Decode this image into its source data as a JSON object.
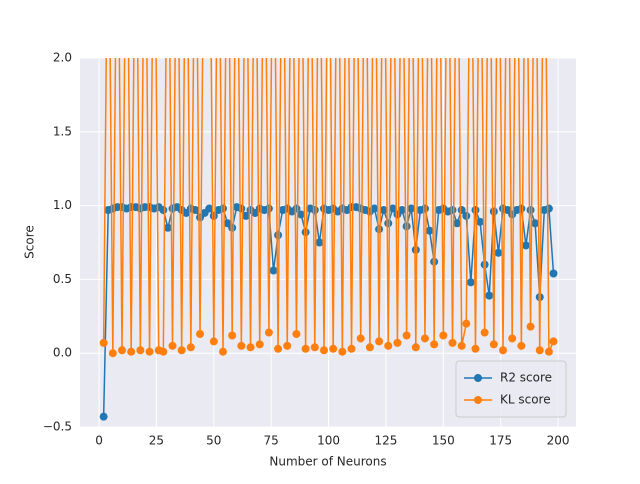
{
  "chart_data": {
    "type": "line",
    "xlabel": "Number of Neurons",
    "ylabel": "Score",
    "x": [
      2,
      4,
      6,
      8,
      10,
      12,
      14,
      16,
      18,
      20,
      22,
      24,
      26,
      28,
      30,
      32,
      34,
      36,
      38,
      40,
      42,
      44,
      46,
      48,
      50,
      52,
      54,
      56,
      58,
      60,
      62,
      64,
      66,
      68,
      70,
      72,
      74,
      76,
      78,
      80,
      82,
      84,
      86,
      88,
      90,
      92,
      94,
      96,
      98,
      100,
      102,
      104,
      106,
      108,
      110,
      112,
      114,
      116,
      118,
      120,
      122,
      124,
      126,
      128,
      130,
      132,
      134,
      136,
      138,
      140,
      142,
      144,
      146,
      148,
      150,
      152,
      154,
      156,
      158,
      160,
      162,
      164,
      166,
      168,
      170,
      172,
      174,
      176,
      178,
      180,
      182,
      184,
      186,
      188,
      190,
      192,
      194,
      196,
      198
    ],
    "series": [
      {
        "name": "R2 score",
        "color": "#1f77b4",
        "values": [
          -0.43,
          0.97,
          0.98,
          0.99,
          0.99,
          0.98,
          0.99,
          0.99,
          0.98,
          0.99,
          0.99,
          0.98,
          0.99,
          0.97,
          0.85,
          0.98,
          0.99,
          0.97,
          0.95,
          0.98,
          0.97,
          0.92,
          0.95,
          0.98,
          0.93,
          0.97,
          0.98,
          0.88,
          0.85,
          0.99,
          0.98,
          0.93,
          0.97,
          0.95,
          0.98,
          0.97,
          0.98,
          0.56,
          0.8,
          0.97,
          0.98,
          0.96,
          0.98,
          0.94,
          0.82,
          0.98,
          0.97,
          0.75,
          0.98,
          0.97,
          0.98,
          0.96,
          0.98,
          0.97,
          0.99,
          0.99,
          0.98,
          0.97,
          0.96,
          0.98,
          0.84,
          0.97,
          0.88,
          0.98,
          0.94,
          0.97,
          0.86,
          0.98,
          0.7,
          0.97,
          0.98,
          0.83,
          0.62,
          0.97,
          0.98,
          0.96,
          0.97,
          0.88,
          0.97,
          0.93,
          0.48,
          0.97,
          0.89,
          0.6,
          0.39,
          0.96,
          0.68,
          0.98,
          0.97,
          0.94,
          0.97,
          0.98,
          0.73,
          0.97,
          0.88,
          0.38,
          0.97,
          0.98,
          0.54
        ]
      },
      {
        "name": "KL score",
        "color": "#ff7f0e",
        "values": [
          0.07,
          3.5,
          0.0,
          3.5,
          0.02,
          3.5,
          0.01,
          3.5,
          0.02,
          3.5,
          0.01,
          3.5,
          0.02,
          0.01,
          3.5,
          0.05,
          3.5,
          0.02,
          3.5,
          0.04,
          3.5,
          0.13,
          3.5,
          3.5,
          0.08,
          3.5,
          0.01,
          3.5,
          0.12,
          3.5,
          0.05,
          3.5,
          0.04,
          3.5,
          0.06,
          3.5,
          0.14,
          3.5,
          0.03,
          3.5,
          0.05,
          3.5,
          0.13,
          3.5,
          0.03,
          3.5,
          0.04,
          3.5,
          0.02,
          3.5,
          0.03,
          3.5,
          0.01,
          3.5,
          0.03,
          3.5,
          0.1,
          3.5,
          0.04,
          3.5,
          0.08,
          3.5,
          0.05,
          3.5,
          0.07,
          3.5,
          0.12,
          3.5,
          0.04,
          3.5,
          0.1,
          3.5,
          0.06,
          3.5,
          0.12,
          3.5,
          0.07,
          3.5,
          0.05,
          0.2,
          3.5,
          0.03,
          3.5,
          0.14,
          3.5,
          0.06,
          3.5,
          0.02,
          3.5,
          0.1,
          3.5,
          0.05,
          3.5,
          0.18,
          3.5,
          0.02,
          3.5,
          0.01,
          0.08
        ]
      }
    ],
    "xlim": [
      -8.3,
      207.8
    ],
    "ylim": [
      -0.5,
      2.0
    ],
    "xticks": [
      0,
      25,
      50,
      75,
      100,
      125,
      150,
      175,
      200
    ],
    "yticks": [
      {
        "value": -0.5,
        "label": "−0.5"
      },
      {
        "value": 0,
        "label": "0.0"
      },
      {
        "value": 0.5,
        "label": "0.5"
      },
      {
        "value": 1,
        "label": "1.0"
      },
      {
        "value": 1.5,
        "label": "1.5"
      },
      {
        "value": 2,
        "label": "2.0"
      }
    ],
    "grid": true,
    "legend": "lower right"
  }
}
